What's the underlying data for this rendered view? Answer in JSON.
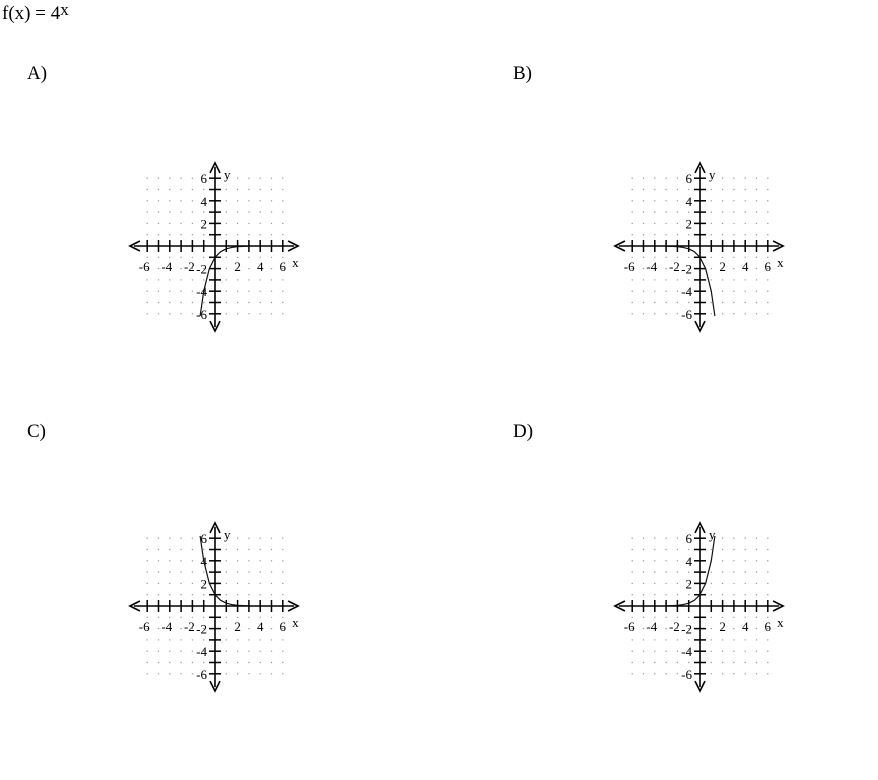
{
  "question": {
    "func": "f(x) = 4",
    "exponent": "x"
  },
  "chart_data": [
    {
      "type": "line",
      "label": "A)",
      "xlabel": "x",
      "ylabel": "y",
      "xlim": [
        -7,
        7
      ],
      "ylim": [
        -7,
        7
      ],
      "xticks": [
        -6,
        -4,
        -2,
        2,
        4,
        6
      ],
      "yticks": [
        -6,
        -4,
        -2,
        2,
        4,
        6
      ],
      "grid": "dotted",
      "curve": {
        "formula": "-4^(-x)",
        "x": [
          -1.32,
          -1.0,
          -0.5,
          0.0,
          0.5,
          1.0,
          1.5,
          2.0,
          3.0
        ],
        "y": [
          -6.2,
          -4.0,
          -2.0,
          -1.0,
          -0.5,
          -0.25,
          -0.125,
          -0.0625,
          -0.016
        ]
      }
    },
    {
      "type": "line",
      "label": "B)",
      "xlabel": "x",
      "ylabel": "y",
      "xlim": [
        -7,
        7
      ],
      "ylim": [
        -7,
        7
      ],
      "xticks": [
        -6,
        -4,
        -2,
        2,
        4,
        6
      ],
      "yticks": [
        -6,
        -4,
        -2,
        2,
        4,
        6
      ],
      "grid": "dotted",
      "curve": {
        "formula": "-4^x",
        "x": [
          -3.0,
          -2.0,
          -1.5,
          -1.0,
          -0.5,
          0.0,
          0.5,
          1.0,
          1.32
        ],
        "y": [
          -0.016,
          -0.0625,
          -0.125,
          -0.25,
          -0.5,
          -1.0,
          -2.0,
          -4.0,
          -6.2
        ]
      }
    },
    {
      "type": "line",
      "label": "C)",
      "xlabel": "x",
      "ylabel": "y",
      "xlim": [
        -7,
        7
      ],
      "ylim": [
        -7,
        7
      ],
      "xticks": [
        -6,
        -4,
        -2,
        2,
        4,
        6
      ],
      "yticks": [
        -6,
        -4,
        -2,
        2,
        4,
        6
      ],
      "grid": "dotted",
      "curve": {
        "formula": "4^(-x)",
        "x": [
          -1.32,
          -1.0,
          -0.5,
          0.0,
          0.5,
          1.0,
          1.5,
          2.0,
          3.0
        ],
        "y": [
          6.2,
          4.0,
          2.0,
          1.0,
          0.5,
          0.25,
          0.125,
          0.0625,
          0.016
        ]
      }
    },
    {
      "type": "line",
      "label": "D)",
      "xlabel": "x",
      "ylabel": "y",
      "xlim": [
        -7,
        7
      ],
      "ylim": [
        -7,
        7
      ],
      "xticks": [
        -6,
        -4,
        -2,
        2,
        4,
        6
      ],
      "yticks": [
        -6,
        -4,
        -2,
        2,
        4,
        6
      ],
      "grid": "dotted",
      "curve": {
        "formula": "4^x",
        "x": [
          -3.0,
          -2.0,
          -1.5,
          -1.0,
          -0.5,
          0.0,
          0.5,
          1.0,
          1.32
        ],
        "y": [
          0.016,
          0.0625,
          0.125,
          0.25,
          0.5,
          1.0,
          2.0,
          4.0,
          6.2
        ]
      }
    }
  ]
}
